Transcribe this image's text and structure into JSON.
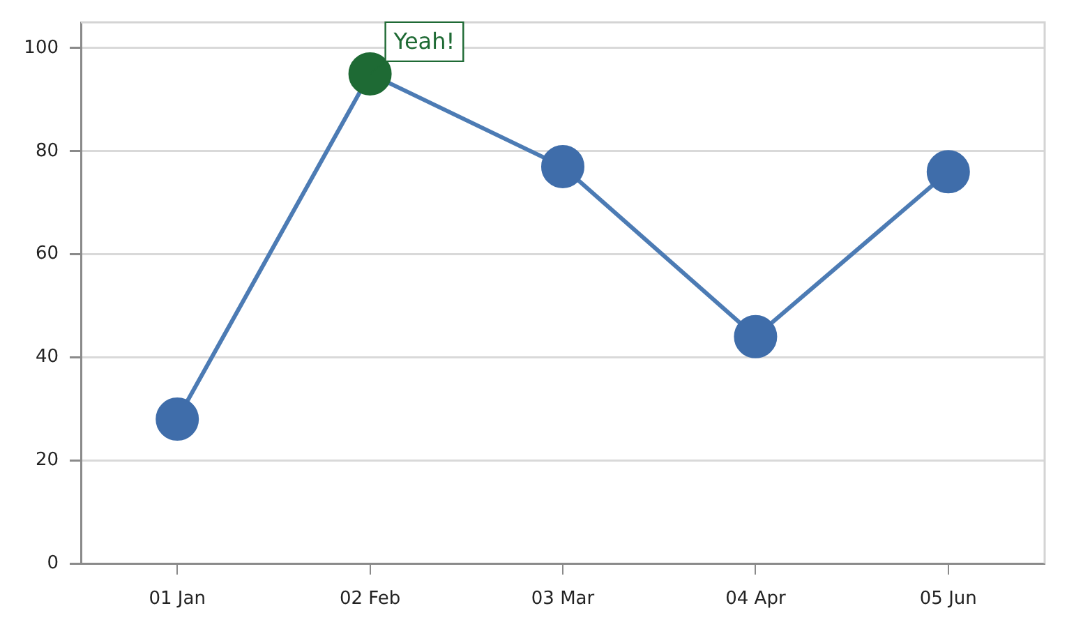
{
  "chart_data": {
    "type": "line",
    "categories": [
      "01 Jan",
      "02 Feb",
      "03 Mar",
      "04 Apr",
      "05 Jun"
    ],
    "values": [
      28,
      95,
      77,
      44,
      76
    ],
    "color": "#4c7bb4",
    "colors": [
      "#3f6daa",
      "#1e6a34",
      "#3f6daa",
      "#3f6daa",
      "#3f6daa"
    ],
    "ylim": [
      0,
      105
    ],
    "yticks": [
      0,
      20,
      40,
      60,
      80,
      100
    ],
    "grid": "y",
    "marker": "circle",
    "line_style": "solid",
    "annotations": [
      {
        "text": "Yeah!",
        "x": "02 Feb",
        "y": 95
      }
    ]
  }
}
